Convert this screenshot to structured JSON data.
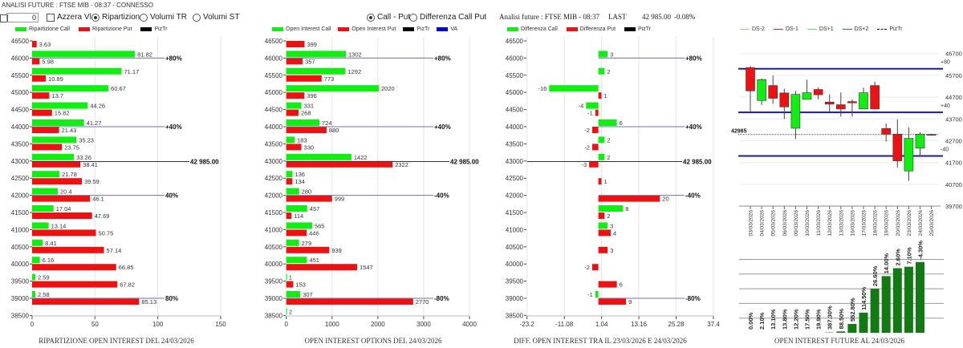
{
  "app": {
    "title": "ANALISI FUTURE : FTSE MIB - 08:37 - CONNESSO"
  },
  "controls": {
    "input_value": "0",
    "reset_label": "Azzera Vl.",
    "mode_options": [
      {
        "label": "Ripartizione",
        "selected": true
      },
      {
        "label": "Volumi TR",
        "selected": false
      },
      {
        "label": "Volumi ST",
        "selected": false
      }
    ],
    "view_options": [
      {
        "label": "Call - Put",
        "selected": true
      },
      {
        "label": "Differenza Call Put",
        "selected": false
      }
    ]
  },
  "future_header": {
    "title": "Analisi future : FTSE MIB - 08:37",
    "last_label": "LAST",
    "last_value": "42 985.00",
    "change": "-0.08%"
  },
  "colors": {
    "call": "#11ee11",
    "put": "#ee1111",
    "piztr": "#000000",
    "va": "#0000cc",
    "ref_line": "#7070b0",
    "band_line": "#1a1aa0",
    "oi_bar": "#127a12",
    "ds_minus2": "#d8a888",
    "ds_minus1": "#cc2222",
    "ds_plus1": "#66dd66",
    "ds_plus2": "#228822"
  },
  "legends": {
    "chart1": [
      "Ripartizione Call",
      "Ripartizione Put",
      "PizTr"
    ],
    "chart2": [
      "Open Interest Call",
      "Open Interest Put",
      "PizTr",
      "VA"
    ],
    "chart3": [
      "Differenza Call",
      "Differenza Put",
      "PizTr"
    ],
    "chart4": [
      "DS-2",
      "DS-1",
      "DS+1",
      "DS+2",
      "PizTr"
    ]
  },
  "chart_data": [
    {
      "type": "bar",
      "orientation": "horizontal",
      "title": "RIPARTIZIONE OPEN INTEREST DEL 24/03/2026",
      "categories": [
        46500,
        46000,
        45500,
        45000,
        44500,
        44000,
        43500,
        43000,
        42500,
        42000,
        41500,
        41000,
        40500,
        40000,
        39500,
        39000,
        38500
      ],
      "series": [
        {
          "name": "Ripartizione Call",
          "values": [
            null,
            81.82,
            71.17,
            60.67,
            44.26,
            41.27,
            35.23,
            33.26,
            21.78,
            20.4,
            17.04,
            13.14,
            8.41,
            6.16,
            2.59,
            2.58,
            null
          ]
        },
        {
          "name": "Ripartizione Put",
          "values": [
            3.63,
            5.98,
            10.89,
            13.7,
            15.82,
            21.43,
            23.75,
            38.41,
            39.59,
            46.1,
            47.69,
            50.75,
            57.14,
            66.85,
            67.82,
            85.13,
            null
          ]
        }
      ],
      "value_labels": {
        "call": [
          "",
          "81.82",
          "71.17",
          "60.67",
          "44.26",
          "41.27",
          "35.23",
          "33.26",
          "21.78",
          "20.4",
          "17.04",
          "13.14",
          "8.41",
          "6.16",
          "2.59",
          "2.58",
          ""
        ],
        "put": [
          "3.63",
          "5.98",
          "10.89",
          "13.7",
          "15.82",
          "21.43",
          "23.75",
          "38.41",
          "39.59",
          "46.1",
          "47.69",
          "50.75",
          "57.14",
          "66.85",
          "67.82",
          "85.13",
          ""
        ]
      },
      "xlim": [
        0,
        150
      ],
      "xticks": [
        "0",
        "50",
        "100",
        "150"
      ],
      "reference_lines": [
        {
          "strike": 46000,
          "label": "+80%"
        },
        {
          "strike": 44000,
          "label": "+40%"
        },
        {
          "strike": 42000,
          "label": "40%"
        },
        {
          "strike": 39000,
          "label": "80%"
        }
      ],
      "last_price": {
        "value": 42985,
        "label": "42 985.00"
      },
      "grid": true
    },
    {
      "type": "bar",
      "orientation": "horizontal",
      "title": "OPEN INTEREST OPTIONS DEL 24/03/2026",
      "categories": [
        46500,
        46000,
        45500,
        45000,
        44500,
        44000,
        43500,
        43000,
        42500,
        42000,
        41500,
        41000,
        40500,
        40000,
        39500,
        39000,
        38500
      ],
      "series": [
        {
          "name": "Open Interest Call",
          "values": [
            null,
            1302,
            1292,
            2020,
            331,
            724,
            183,
            1422,
            136,
            280,
            457,
            565,
            279,
            451,
            1,
            307,
            2
          ]
        },
        {
          "name": "Open Interest Put",
          "values": [
            399,
            357,
            773,
            396,
            268,
            880,
            330,
            2322,
            134,
            999,
            114,
            446,
            939,
            1547,
            153,
            2770,
            null
          ]
        }
      ],
      "value_labels": {
        "call": [
          "",
          "1302",
          "1292",
          "2020",
          "331",
          "724",
          "183",
          "1422",
          "136",
          "280",
          "457",
          "565",
          "279",
          "451",
          "1",
          "307",
          "2"
        ],
        "put": [
          "399",
          "357",
          "773",
          "396",
          "268",
          "880",
          "330",
          "2322",
          "134",
          "999",
          "114",
          "446",
          "939",
          "1547",
          "153",
          "2770",
          ""
        ]
      },
      "xlim": [
        0,
        4000
      ],
      "xticks": [
        "0",
        "1000",
        "2000",
        "3000",
        "4000"
      ],
      "reference_lines": [
        {
          "strike": 46000,
          "label": "+80%"
        },
        {
          "strike": 44000,
          "label": "+40%"
        },
        {
          "strike": 42000,
          "label": "-40%"
        },
        {
          "strike": 39000,
          "label": "-80%"
        }
      ],
      "last_price": {
        "value": 42985,
        "label": "42 985.00"
      },
      "grid": true
    },
    {
      "type": "bar",
      "orientation": "horizontal",
      "title": "DIFF. OPEN INTEREST TRA IL 23/03/2026 E 24/03/2026",
      "categories": [
        46500,
        46000,
        45500,
        45000,
        44500,
        44000,
        43500,
        43000,
        42500,
        42000,
        41500,
        41000,
        40500,
        40000,
        39500,
        39000,
        38500
      ],
      "series": [
        {
          "name": "Differenza Call",
          "values": [
            null,
            3,
            2,
            -16,
            -4,
            6,
            2,
            2,
            null,
            null,
            8,
            3,
            null,
            null,
            null,
            -1,
            null
          ]
        },
        {
          "name": "Differenza Put",
          "values": [
            null,
            null,
            null,
            1,
            -1,
            -2,
            -2,
            -3,
            1,
            20,
            2,
            4,
            3,
            -2,
            6,
            9,
            null
          ]
        }
      ],
      "value_labels": {
        "call": [
          "",
          "3",
          "2",
          "-16",
          "-4",
          "6",
          "2",
          "2",
          "",
          "",
          "8",
          "3",
          "",
          "",
          "",
          "-1",
          ""
        ],
        "put": [
          "",
          "",
          "",
          "1",
          "-1",
          "-2",
          "-2",
          "-3",
          "1",
          "20",
          "2",
          "4",
          "3",
          "-2",
          "6",
          "9",
          ""
        ]
      },
      "xlim": [
        -23.2,
        37.4
      ],
      "xticks": [
        "-23.2",
        "-11.08",
        "1.04",
        "13.16",
        "25.28",
        "37.4"
      ],
      "reference_lines": [
        {
          "strike": 46000,
          "label": "+80%"
        },
        {
          "strike": 44000,
          "label": "+40%"
        },
        {
          "strike": 42000,
          "label": "-40%"
        },
        {
          "strike": 39000,
          "label": "-80%"
        }
      ],
      "last_price": {
        "value": 42985,
        "label": "42 985.00"
      },
      "grid": true
    },
    {
      "type": "candlestick",
      "dates": [
        "03/03/2026",
        "04/03/2026",
        "05/03/2026",
        "06/03/2026",
        "09/03/2026",
        "10/03/2026",
        "11/03/2026",
        "12/03/2026",
        "13/03/2026",
        "16/03/2026",
        "17/03/2026",
        "18/03/2026",
        "19/03/2026",
        "20/03/2026",
        "23/03/2026",
        "24/03/2026",
        "25/03/2026"
      ],
      "ohlc": [
        [
          46050,
          46125,
          44005,
          44985
        ],
        [
          44545,
          45560,
          44335,
          45500
        ],
        [
          45230,
          45685,
          44400,
          44645
        ],
        [
          44890,
          45085,
          43690,
          44250
        ],
        [
          43270,
          44985,
          42780,
          44825
        ],
        [
          44595,
          45500,
          44595,
          44900
        ],
        [
          45050,
          45145,
          44595,
          44805
        ],
        [
          44470,
          44825,
          44005,
          44375
        ],
        [
          44350,
          44915,
          43810,
          44155
        ],
        [
          44495,
          44595,
          43810,
          44435
        ],
        [
          44155,
          45135,
          44155,
          44900
        ],
        [
          45230,
          45415,
          44155,
          44155
        ],
        [
          43260,
          43490,
          42660,
          43000
        ],
        [
          43000,
          43675,
          41470,
          41775
        ],
        [
          41310,
          43310,
          40860,
          42805
        ],
        [
          42355,
          43090,
          42045,
          43000
        ],
        [
          42985,
          43020,
          42950,
          42985
        ]
      ],
      "ylim": [
        39700,
        46700
      ],
      "yticks": [
        "46700",
        "45700",
        "44700",
        "43700",
        "42700",
        "41700",
        "40700",
        "39700"
      ],
      "bands": [
        {
          "value": 46000,
          "label": "+80"
        },
        {
          "value": 44000,
          "label": "+40"
        },
        {
          "value": 42000,
          "label": "-40"
        }
      ],
      "last_price": {
        "value": 42985,
        "label": "42985"
      },
      "grid": true
    },
    {
      "type": "bar",
      "title": "OPEN INTEREST FUTURE AL 24/03/2026",
      "categories": [
        "03/03/2026",
        "04/03/2026",
        "05/03/2026",
        "06/03/2026",
        "09/03/2026",
        "10/03/2026",
        "11/03/2026",
        "12/03/2026",
        "13/03/2026",
        "16/03/2026",
        "17/03/2026",
        "18/03/2026",
        "19/03/2026",
        "20/03/2026",
        "23/03/2026",
        "24/03/2026"
      ],
      "labels": [
        "0.00%",
        "2.10%",
        "13.10%",
        "13.80%",
        "12.20%",
        "17.50%",
        "19.90%",
        "387.30%",
        "88.50%",
        "552.80%",
        "114.50%",
        "26.60%",
        "14.00%",
        "2.60%",
        "7.10%",
        "-4.30%"
      ],
      "relative_level": [
        0,
        0,
        0,
        0,
        0,
        0,
        0,
        0.02,
        0.09,
        0.6,
        1.37,
        3.0,
        3.86,
        4.4,
        4.5,
        4.82
      ],
      "grid": true
    }
  ]
}
